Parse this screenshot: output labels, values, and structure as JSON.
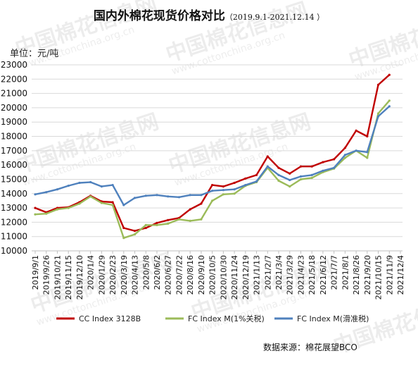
{
  "header": {
    "title": "国内外棉花现货价格对比",
    "subtitle": "（2019.9.1-2021.12.14 ）"
  },
  "unit_label": "单位：元/吨",
  "source_text": "数据来源：棉花展望BCO",
  "watermark": {
    "brand": "中国棉花信息网",
    "url": "www.cottonchina.org.cn"
  },
  "chart_data": {
    "type": "line",
    "title": "国内外棉花现货价格对比",
    "ylabel": "单位：元/吨",
    "ylim": [
      10000,
      23000
    ],
    "yticks": [
      10000,
      11000,
      12000,
      13000,
      14000,
      15000,
      16000,
      17000,
      18000,
      19000,
      20000,
      21000,
      22000,
      23000
    ],
    "grid": true,
    "legend_position": "bottom",
    "x_tick_labels": [
      "2019/9/1",
      "2019/9/26",
      "2019/10/21",
      "2019/11/15",
      "2019/12/10",
      "2020/1/4",
      "2020/1/29",
      "2020/2/23",
      "2020/3/19",
      "2020/4/13",
      "2020/5/8",
      "2020/6/2",
      "2020/6/27",
      "2020/7/22",
      "2020/8/16",
      "2020/9/10",
      "2020/10/5",
      "2020/10/30",
      "2020/11/24",
      "2020/12/19",
      "2021/1/13",
      "2021/2/7",
      "2021/3/4",
      "2021/3/29",
      "2021/4/23",
      "2021/5/18",
      "2021/6/12",
      "2021/7/7",
      "2021/8/1",
      "2021/8/26",
      "2021/9/20",
      "2021/10/15",
      "2021/11/9",
      "2021/12/4"
    ],
    "series": [
      {
        "name": "CC Index 3128B",
        "color": "#c00000",
        "values": [
          13000,
          12700,
          13000,
          13050,
          13400,
          13850,
          13450,
          13400,
          11600,
          11400,
          11600,
          11950,
          12150,
          12300,
          12900,
          13300,
          14600,
          14500,
          14750,
          15050,
          15300,
          16600,
          15800,
          15400,
          15900,
          15900,
          16200,
          16400,
          17200,
          18400,
          18000,
          21600,
          22300,
          null
        ]
      },
      {
        "name": "FC Index M(1%关税)",
        "color": "#9bbb59",
        "values": [
          12550,
          12600,
          12900,
          13000,
          13300,
          13800,
          13350,
          13200,
          10900,
          11150,
          11800,
          11800,
          11900,
          12200,
          12100,
          12200,
          13500,
          13950,
          14000,
          14550,
          14800,
          15800,
          14900,
          14500,
          15000,
          15100,
          15500,
          15750,
          16500,
          17000,
          16500,
          19600,
          20500,
          null
        ]
      },
      {
        "name": "FC Index M(滑准税)",
        "color": "#4f81bd",
        "values": [
          13950,
          14100,
          14300,
          14550,
          14750,
          14800,
          14500,
          14600,
          13200,
          13700,
          13850,
          13900,
          13800,
          13750,
          13900,
          13900,
          14200,
          14250,
          14300,
          14600,
          14850,
          15900,
          15300,
          14950,
          15200,
          15300,
          15600,
          15800,
          16700,
          17000,
          16900,
          19400,
          20100,
          null
        ]
      }
    ]
  }
}
